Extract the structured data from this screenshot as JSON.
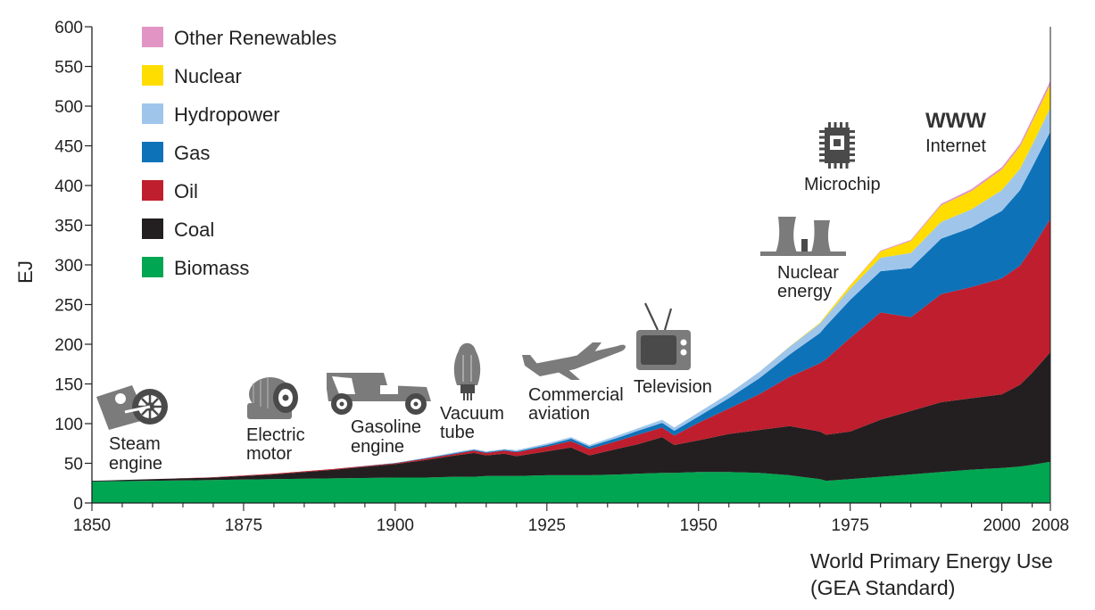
{
  "caption": {
    "line1": "World Primary Energy Use",
    "line2": "(GEA Standard)"
  },
  "chart_data": {
    "type": "area",
    "stacked": true,
    "ylabel": "EJ",
    "xlabel": "",
    "xlim": [
      1850,
      2008
    ],
    "ylim": [
      0,
      600
    ],
    "xticks": [
      1850,
      1875,
      1900,
      1925,
      1950,
      1975,
      2000,
      2008
    ],
    "yticks": [
      0,
      50,
      100,
      150,
      200,
      250,
      300,
      350,
      400,
      450,
      500,
      550,
      600
    ],
    "grid": false,
    "legend_position": "top-left",
    "x": [
      1850,
      1860,
      1870,
      1880,
      1890,
      1900,
      1905,
      1910,
      1913,
      1915,
      1918,
      1920,
      1925,
      1929,
      1932,
      1937,
      1940,
      1944,
      1946,
      1950,
      1955,
      1960,
      1965,
      1970,
      1971,
      1975,
      1980,
      1985,
      1990,
      1995,
      2000,
      2003,
      2005,
      2008
    ],
    "series": [
      {
        "name": "Biomass",
        "color": "#00a651",
        "values": [
          27,
          28,
          29,
          30,
          31,
          32,
          32,
          33,
          33,
          34,
          34,
          34,
          35,
          35,
          35,
          36,
          37,
          38,
          38,
          39,
          39,
          38,
          35,
          30,
          28,
          30,
          33,
          36,
          39,
          42,
          44,
          46,
          48,
          52
        ]
      },
      {
        "name": "Coal",
        "color": "#231f20",
        "values": [
          1,
          2,
          3,
          6,
          11,
          17,
          22,
          27,
          30,
          26,
          28,
          25,
          30,
          35,
          25,
          33,
          37,
          45,
          35,
          40,
          48,
          54,
          62,
          60,
          58,
          60,
          72,
          80,
          88,
          90,
          93,
          103,
          116,
          138
        ]
      },
      {
        "name": "Oil",
        "color": "#be1e2d",
        "values": [
          0,
          0,
          0.5,
          1,
          1,
          1,
          2,
          2,
          3,
          3,
          4,
          5,
          6,
          8,
          8,
          10,
          12,
          12,
          12,
          22,
          32,
          45,
          62,
          86,
          95,
          118,
          135,
          118,
          136,
          140,
          146,
          150,
          157,
          168
        ]
      },
      {
        "name": "Gas",
        "color": "#0e72b9",
        "values": [
          0,
          0,
          0,
          0,
          0,
          0.5,
          0.5,
          1,
          1,
          1,
          1,
          1,
          2,
          3,
          3,
          4,
          5,
          6,
          6,
          8,
          13,
          20,
          28,
          38,
          42,
          48,
          52,
          62,
          70,
          75,
          85,
          95,
          102,
          110
        ]
      },
      {
        "name": "Hydropower",
        "color": "#9fc6ea",
        "values": [
          0,
          0,
          0,
          0,
          0,
          0,
          0.5,
          1,
          1,
          1,
          1,
          1.5,
          2,
          2,
          2,
          3,
          3,
          4,
          4,
          5,
          6,
          8,
          10,
          12,
          12,
          14,
          17,
          19,
          21,
          23,
          26,
          27,
          28,
          30
        ]
      },
      {
        "name": "Nuclear",
        "color": "#ffdd00",
        "values": [
          0,
          0,
          0,
          0,
          0,
          0,
          0,
          0,
          0,
          0,
          0,
          0,
          0,
          0,
          0,
          0,
          0,
          0,
          0,
          0,
          0,
          0,
          0.2,
          1,
          1.5,
          4,
          8,
          15,
          21,
          23,
          26,
          28,
          29,
          29
        ]
      },
      {
        "name": "Other Renewables",
        "color": "#e295c5",
        "values": [
          0,
          0,
          0,
          0,
          0,
          0,
          0,
          0,
          0,
          0,
          0,
          0,
          0,
          0,
          0,
          0,
          0,
          0,
          0,
          0,
          0,
          0,
          0,
          0,
          0,
          0.5,
          1,
          1.5,
          2,
          2.5,
          3,
          3.5,
          4,
          5
        ]
      }
    ],
    "annotations": [
      {
        "id": "steam-engine",
        "year": 1850,
        "lines": [
          "Steam",
          "engine"
        ],
        "icon": "steam-engine-icon"
      },
      {
        "id": "electric-motor",
        "year": 1876,
        "lines": [
          "Electric",
          "motor"
        ],
        "icon": "electric-motor-icon"
      },
      {
        "id": "gasoline-engine",
        "year": 1890,
        "lines": [
          "Gasoline",
          "engine"
        ],
        "icon": "car-icon"
      },
      {
        "id": "vacuum-tube",
        "year": 1906,
        "lines": [
          "Vacuum",
          "tube"
        ],
        "icon": "vacuum-tube-icon"
      },
      {
        "id": "commercial-aviation",
        "year": 1932,
        "lines": [
          "Commercial",
          "aviation"
        ],
        "icon": "airplane-icon"
      },
      {
        "id": "television",
        "year": 1941,
        "lines": [
          "Television"
        ],
        "icon": "television-icon"
      },
      {
        "id": "nuclear-energy",
        "year": 1968,
        "lines": [
          "Nuclear",
          "energy"
        ],
        "icon": "cooling-tower-icon"
      },
      {
        "id": "microchip",
        "year": 1972,
        "lines": [
          "Microchip"
        ],
        "icon": "microchip-icon"
      },
      {
        "id": "internet",
        "year": 1990,
        "lines": [
          "WWW",
          "Internet"
        ],
        "icon": "www-icon"
      }
    ]
  }
}
